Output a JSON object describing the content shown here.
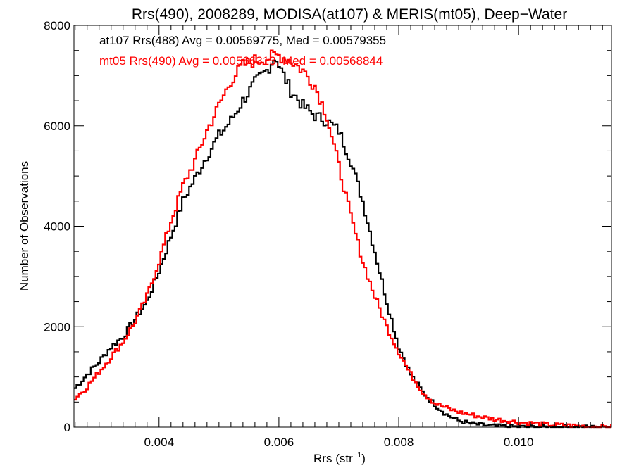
{
  "chart_data": {
    "type": "line",
    "title": "Rrs(490), 2008289, MODISA(at107) & MERIS(mt05), Deep−Water",
    "xlabel": "Rrs (str",
    "xlabel_sup": "−1",
    "xlabel_end": ")",
    "ylabel": "Number of Observations",
    "xlim": [
      0.00258,
      0.01155
    ],
    "ylim": [
      0,
      8000
    ],
    "x_ticks": [
      0.004,
      0.006,
      0.008,
      0.01
    ],
    "x_tick_labels": [
      "0.004",
      "0.006",
      "0.008",
      "0.010"
    ],
    "y_ticks": [
      0,
      2000,
      4000,
      6000,
      8000
    ],
    "y_tick_labels": [
      "0",
      "2000",
      "4000",
      "6000",
      "8000"
    ],
    "grid": false,
    "legend_position": "top-left",
    "series": [
      {
        "name": "at107 Rrs(488) Avg = 0.00569775, Med = 0.00579355",
        "color": "#000000",
        "x": [
          0.00258,
          0.0028,
          0.003,
          0.0032,
          0.0034,
          0.0036,
          0.0038,
          0.004,
          0.0042,
          0.0044,
          0.0046,
          0.0048,
          0.005,
          0.0052,
          0.0054,
          0.0056,
          0.0058,
          0.00595,
          0.006,
          0.0062,
          0.0064,
          0.0066,
          0.0068,
          0.007,
          0.0072,
          0.0074,
          0.0076,
          0.0078,
          0.008,
          0.0082,
          0.0084,
          0.0086,
          0.0088,
          0.009,
          0.0092,
          0.0094,
          0.0096,
          0.0098,
          0.01,
          0.0105,
          0.011,
          0.01155
        ],
        "y": [
          750,
          1050,
          1300,
          1600,
          1800,
          2150,
          2500,
          3100,
          3800,
          4500,
          4950,
          5400,
          5800,
          6100,
          6500,
          6850,
          7100,
          7400,
          7200,
          6700,
          6400,
          6200,
          6100,
          5900,
          5300,
          4500,
          3500,
          2500,
          1600,
          1050,
          700,
          450,
          250,
          130,
          70,
          40,
          20,
          10,
          6,
          3,
          1,
          0
        ]
      },
      {
        "name": "mt05 Rrs(490) Avg = 0.00566313, Med = 0.00568844",
        "color": "#ff0000",
        "x": [
          0.00258,
          0.0028,
          0.003,
          0.0032,
          0.0034,
          0.0036,
          0.0038,
          0.004,
          0.0042,
          0.0044,
          0.0046,
          0.0048,
          0.005,
          0.0052,
          0.0054,
          0.0056,
          0.0058,
          0.006,
          0.0062,
          0.0064,
          0.0066,
          0.0068,
          0.007,
          0.0072,
          0.0074,
          0.0076,
          0.0078,
          0.008,
          0.0082,
          0.0084,
          0.0086,
          0.0088,
          0.009,
          0.0092,
          0.0094,
          0.0096,
          0.0098,
          0.01,
          0.0102,
          0.0104,
          0.0106,
          0.0108,
          0.011,
          0.0112,
          0.01155
        ],
        "y": [
          550,
          800,
          1100,
          1400,
          1700,
          2100,
          2600,
          3300,
          4100,
          4800,
          5300,
          5900,
          6400,
          6900,
          7200,
          7300,
          7350,
          7400,
          7300,
          7100,
          6800,
          6200,
          5200,
          4200,
          3300,
          2600,
          2000,
          1500,
          1050,
          700,
          480,
          380,
          300,
          250,
          200,
          160,
          130,
          100,
          80,
          60,
          45,
          35,
          25,
          15,
          10
        ]
      }
    ]
  }
}
